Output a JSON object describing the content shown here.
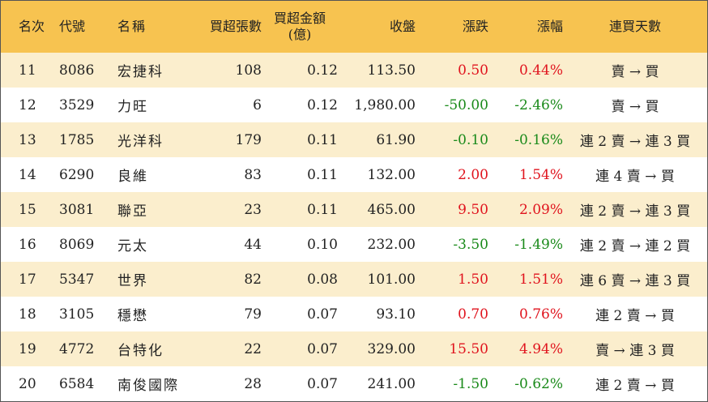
{
  "headers": {
    "rank": "名次",
    "code": "代號",
    "name": "名稱",
    "net_buy_lots": "買超張數",
    "net_buy_amount_line1": "買超金額",
    "net_buy_amount_line2": "(億)",
    "close": "收盤",
    "change": "漲跌",
    "change_pct": "漲幅",
    "consecutive_days": "連買天數"
  },
  "colors": {
    "header_bg": "#f7c350",
    "odd_row_bg": "#fbeecd",
    "up": "#e0141e",
    "down": "#1a8a1a"
  },
  "rows": [
    {
      "rank": "11",
      "code": "8086",
      "name": "宏捷科",
      "lots": "108",
      "amount": "0.12",
      "close": "113.50",
      "change": "0.50",
      "pct": "0.44%",
      "days": "賣 → 買",
      "dir": "up"
    },
    {
      "rank": "12",
      "code": "3529",
      "name": "力旺",
      "lots": "6",
      "amount": "0.12",
      "close": "1,980.00",
      "change": "-50.00",
      "pct": "-2.46%",
      "days": "賣 → 買",
      "dir": "down"
    },
    {
      "rank": "13",
      "code": "1785",
      "name": "光洋科",
      "lots": "179",
      "amount": "0.11",
      "close": "61.90",
      "change": "-0.10",
      "pct": "-0.16%",
      "days": "連 2 賣 → 連 3 買",
      "dir": "down"
    },
    {
      "rank": "14",
      "code": "6290",
      "name": "良維",
      "lots": "83",
      "amount": "0.11",
      "close": "132.00",
      "change": "2.00",
      "pct": "1.54%",
      "days": "連 4 賣 → 買",
      "dir": "up"
    },
    {
      "rank": "15",
      "code": "3081",
      "name": "聯亞",
      "lots": "23",
      "amount": "0.11",
      "close": "465.00",
      "change": "9.50",
      "pct": "2.09%",
      "days": "連 2 賣 → 連 3 買",
      "dir": "up"
    },
    {
      "rank": "16",
      "code": "8069",
      "name": "元太",
      "lots": "44",
      "amount": "0.10",
      "close": "232.00",
      "change": "-3.50",
      "pct": "-1.49%",
      "days": "連 2 賣 → 連 2 買",
      "dir": "down"
    },
    {
      "rank": "17",
      "code": "5347",
      "name": "世界",
      "lots": "82",
      "amount": "0.08",
      "close": "101.00",
      "change": "1.50",
      "pct": "1.51%",
      "days": "連 6 賣 → 連 3 買",
      "dir": "up"
    },
    {
      "rank": "18",
      "code": "3105",
      "name": "穩懋",
      "lots": "79",
      "amount": "0.07",
      "close": "93.10",
      "change": "0.70",
      "pct": "0.76%",
      "days": "連 2 賣 → 買",
      "dir": "up"
    },
    {
      "rank": "19",
      "code": "4772",
      "name": "台特化",
      "lots": "22",
      "amount": "0.07",
      "close": "329.00",
      "change": "15.50",
      "pct": "4.94%",
      "days": "賣 → 連 3 買",
      "dir": "up"
    },
    {
      "rank": "20",
      "code": "6584",
      "name": "南俊國際",
      "lots": "28",
      "amount": "0.07",
      "close": "241.00",
      "change": "-1.50",
      "pct": "-0.62%",
      "days": "連 2 賣 → 買",
      "dir": "down"
    }
  ]
}
